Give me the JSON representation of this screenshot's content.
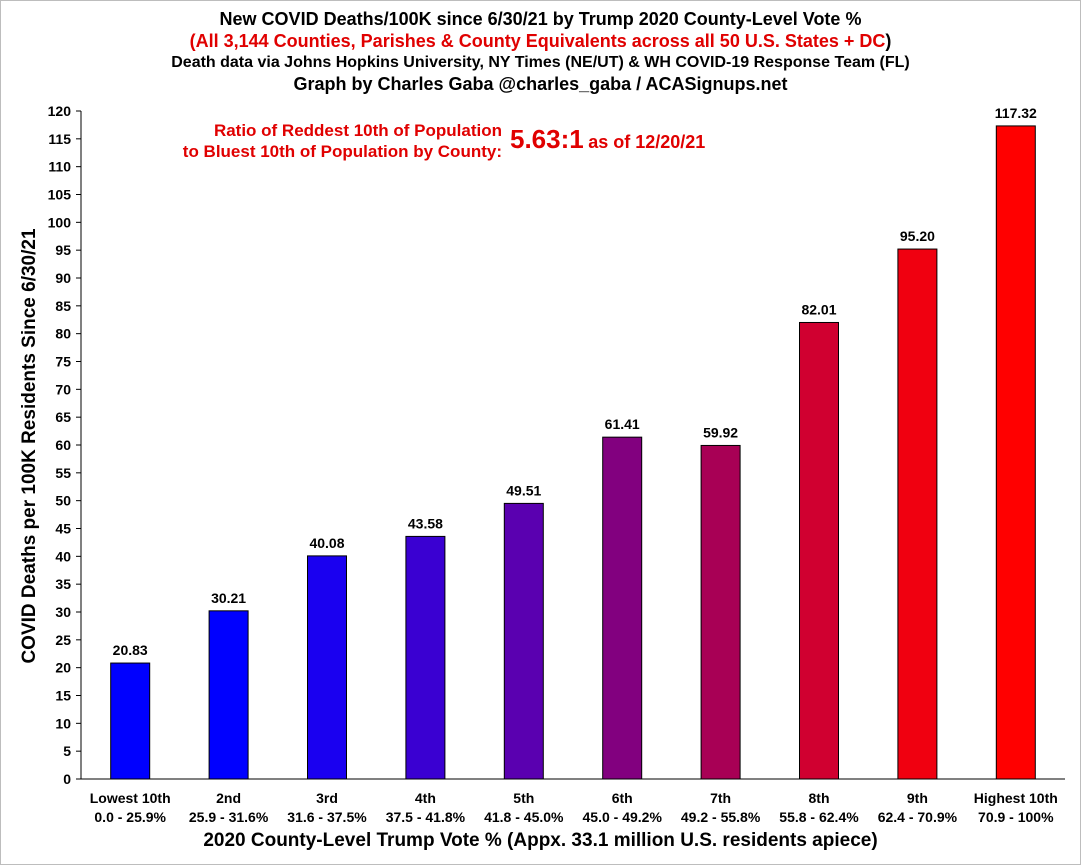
{
  "chart_data": {
    "type": "bar",
    "title": "New COVID Deaths/100K since 6/30/21 by Trump 2020 County-Level Vote %",
    "subtitle_open": "(",
    "subtitle": "All 3,144 Counties, Parishes & County Equivalents across all 50 U.S. States + DC",
    "subtitle_close": ")",
    "source_note": "Death data via Johns Hopkins University, NY Times (NE/UT) & WH COVID-19 Response Team (FL)",
    "credit": "Graph by Charles Gaba @charles_gaba / ACASignups.net",
    "annotation": {
      "label_line1": "Ratio of Reddest 10th of Population",
      "label_line2": "to Bluest 10th of Population by County:",
      "value": "5.63:1",
      "as_of": "as of 12/20/21"
    },
    "ylabel": "COVID Deaths per 100K Residents Since 6/30/21",
    "xlabel": "2020 County-Level Trump Vote % (Appx. 33.1 million U.S. residents apiece)",
    "ylim": [
      0,
      120
    ],
    "ytick_step": 5,
    "grid": false,
    "legend": "none",
    "categories": [
      "Lowest 10th",
      "2nd",
      "3rd",
      "4th",
      "5th",
      "6th",
      "7th",
      "8th",
      "9th",
      "Highest 10th"
    ],
    "category_ranges": [
      "0.0 - 25.9%",
      "25.9 - 31.6%",
      "31.6 - 37.5%",
      "37.5 - 41.8%",
      "41.8 - 45.0%",
      "45.0 - 49.2%",
      "49.2 - 55.8%",
      "55.8 - 62.4%",
      "62.4 - 70.9%",
      "70.9 - 100%"
    ],
    "values": [
      20.83,
      30.21,
      40.08,
      43.58,
      49.51,
      61.41,
      59.92,
      82.01,
      95.2,
      117.32
    ],
    "value_labels": [
      "20.83",
      "30.21",
      "40.08",
      "43.58",
      "49.51",
      "61.41",
      "59.92",
      "82.01",
      "95.20",
      "117.32"
    ],
    "colors": [
      "#0000ff",
      "#0000ff",
      "#1a00f0",
      "#3a00d2",
      "#5a00b0",
      "#82007f",
      "#a80055",
      "#d00030",
      "#f00010",
      "#ff0000"
    ],
    "accent_color": "#e00000"
  }
}
